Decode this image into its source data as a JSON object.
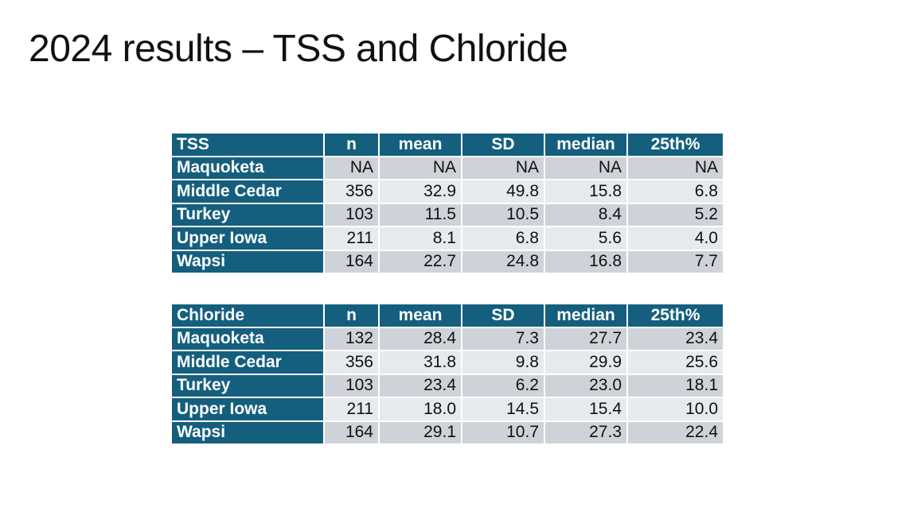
{
  "title": "2024 results – TSS and Chloride",
  "colors": {
    "header": "#155f7e",
    "row_odd": "#ced3d9",
    "row_even": "#e7eaed"
  },
  "tables": [
    {
      "columns": [
        "TSS",
        "n",
        "mean",
        "SD",
        "median",
        "25th%"
      ],
      "rows": [
        [
          "Maquoketa",
          "NA",
          "NA",
          "NA",
          "NA",
          "NA"
        ],
        [
          "Middle Cedar",
          "356",
          "32.9",
          "49.8",
          "15.8",
          "6.8"
        ],
        [
          "Turkey",
          "103",
          "11.5",
          "10.5",
          "8.4",
          "5.2"
        ],
        [
          "Upper Iowa",
          "211",
          "8.1",
          "6.8",
          "5.6",
          "4.0"
        ],
        [
          "Wapsi",
          "164",
          "22.7",
          "24.8",
          "16.8",
          "7.7"
        ]
      ]
    },
    {
      "columns": [
        "Chloride",
        "n",
        "mean",
        "SD",
        "median",
        "25th%"
      ],
      "rows": [
        [
          "Maquoketa",
          "132",
          "28.4",
          "7.3",
          "27.7",
          "23.4"
        ],
        [
          "Middle Cedar",
          "356",
          "31.8",
          "9.8",
          "29.9",
          "25.6"
        ],
        [
          "Turkey",
          "103",
          "23.4",
          "6.2",
          "23.0",
          "18.1"
        ],
        [
          "Upper Iowa",
          "211",
          "18.0",
          "14.5",
          "15.4",
          "10.0"
        ],
        [
          "Wapsi",
          "164",
          "29.1",
          "10.7",
          "27.3",
          "22.4"
        ]
      ]
    }
  ]
}
